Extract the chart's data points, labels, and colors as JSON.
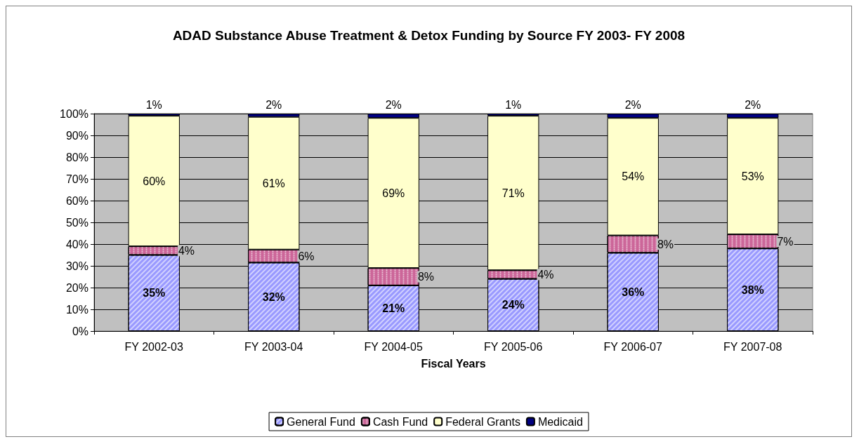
{
  "chart_data": {
    "type": "bar",
    "stacked": true,
    "title": "ADAD Substance Abuse Treatment & Detox Funding by Source FY 2003- FY 2008",
    "xlabel": "Fiscal Years",
    "categories": [
      "FY 2002-03",
      "FY 2003-04",
      "FY 2004-05",
      "FY 2005-06",
      "FY 2006-07",
      "FY 2007-08"
    ],
    "series": [
      {
        "name": "General Fund",
        "color": "#9999ff",
        "values": [
          35,
          31.5,
          21,
          24,
          36,
          38
        ],
        "value_labels": [
          "35%",
          "32%",
          "21%",
          "24%",
          "36%",
          "38%"
        ]
      },
      {
        "name": "Cash Fund",
        "color": "#cc6699",
        "values": [
          4,
          6,
          8,
          4,
          8,
          6.5
        ],
        "value_labels": [
          "4%",
          "6%",
          "8%",
          "4%",
          "8%",
          "7%"
        ]
      },
      {
        "name": "Federal Grants",
        "color": "#ffffcc",
        "values": [
          60,
          61,
          69,
          71,
          54,
          53.5
        ],
        "value_labels": [
          "60%",
          "61%",
          "69%",
          "71%",
          "54%",
          "53%"
        ]
      },
      {
        "name": "Medicaid",
        "color": "#000080",
        "values": [
          1,
          1.5,
          2,
          1,
          2,
          2
        ],
        "value_labels": [
          "1%",
          "2%",
          "2%",
          "1%",
          "2%",
          "2%"
        ]
      }
    ],
    "ylim": [
      0,
      100
    ],
    "yticks": [
      {
        "value": 0,
        "label": "0%"
      },
      {
        "value": 10,
        "label": "10%"
      },
      {
        "value": 20,
        "label": "20%"
      },
      {
        "value": 30,
        "label": "30%"
      },
      {
        "value": 40,
        "label": "40%"
      },
      {
        "value": 50,
        "label": "50%"
      },
      {
        "value": 60,
        "label": "60%"
      },
      {
        "value": 70,
        "label": "70%"
      },
      {
        "value": 80,
        "label": "80%"
      },
      {
        "value": 90,
        "label": "90%"
      },
      {
        "value": 100,
        "label": "100%"
      }
    ],
    "grid": "y",
    "legend": "bottom"
  }
}
